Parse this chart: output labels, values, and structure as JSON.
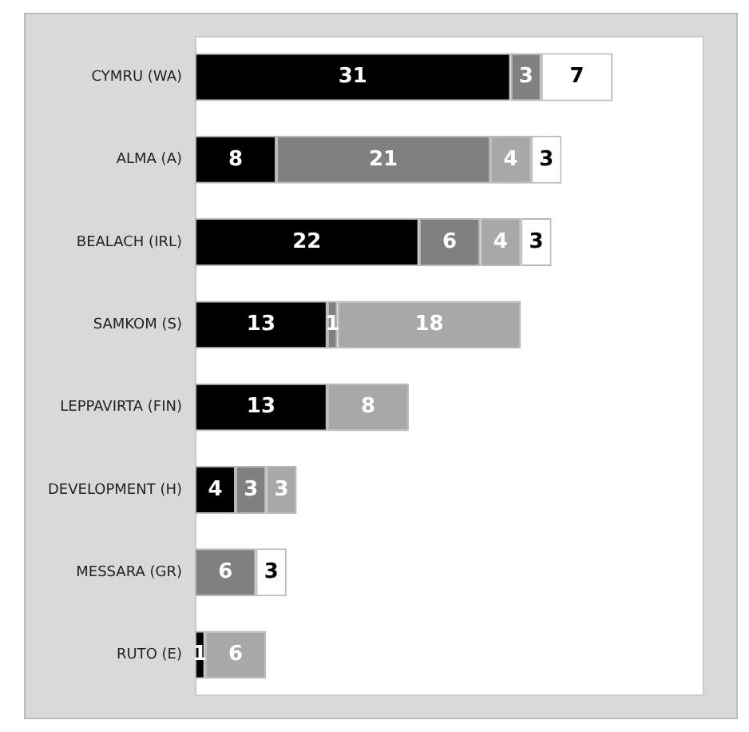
{
  "chart_data": {
    "type": "bar",
    "orientation": "horizontal",
    "stacked": true,
    "data_labels": true,
    "categories": [
      "CYMRU (WA)",
      "ALMA (A)",
      "BEALACH (IRL)",
      "SAMKOM (S)",
      "LEPPAVIRTA (FIN)",
      "DEVELOPMENT (H)",
      "MESSARA (GR)",
      "RUTO (E)"
    ],
    "series": [
      {
        "color": "#000000",
        "values": [
          31,
          8,
          22,
          13,
          13,
          4,
          null,
          1
        ]
      },
      {
        "color": "#808080",
        "values": [
          3,
          21,
          6,
          1,
          null,
          3,
          6,
          null
        ]
      },
      {
        "color": "#a8a8a8",
        "values": [
          null,
          4,
          4,
          18,
          8,
          3,
          null,
          6
        ]
      },
      {
        "color": "#ffffff",
        "values": [
          7,
          3,
          3,
          null,
          null,
          null,
          3,
          null
        ]
      }
    ]
  }
}
